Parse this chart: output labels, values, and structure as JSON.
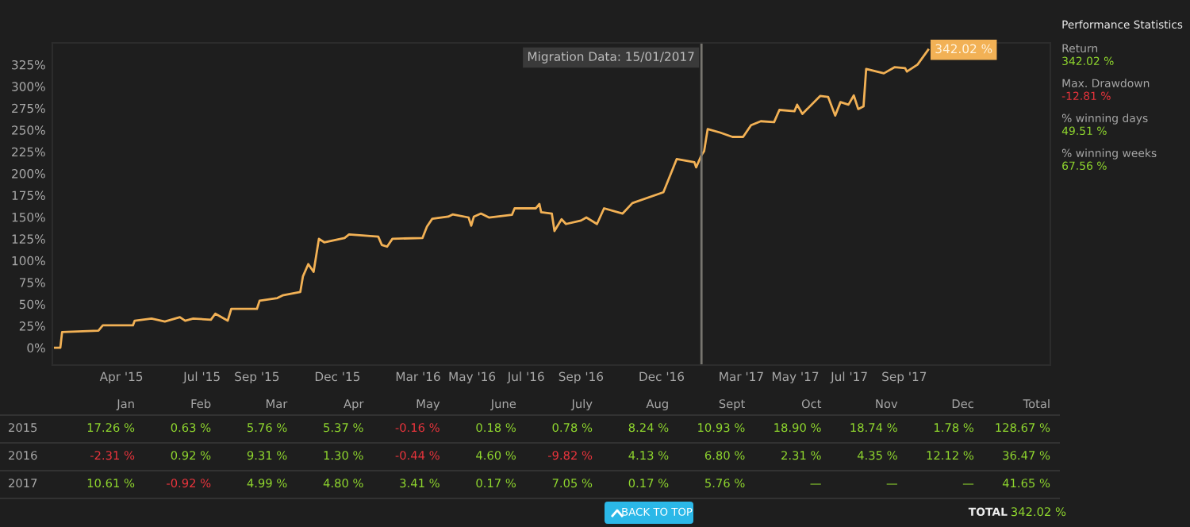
{
  "chart_data": [
    {
      "type": "line",
      "x": [
        "2015-01-16",
        "2015-01-22",
        "2015-01-24",
        "2015-03-06",
        "2015-03-11",
        "2015-04-14",
        "2015-04-16",
        "2015-05-05",
        "2015-05-20",
        "2015-06-06",
        "2015-06-12",
        "2015-06-21",
        "2015-07-11",
        "2015-07-16",
        "2015-07-30",
        "2015-08-03",
        "2015-09-01",
        "2015-09-04",
        "2015-09-24",
        "2015-09-30",
        "2015-10-20",
        "2015-10-23",
        "2015-10-29",
        "2015-11-04",
        "2015-11-10",
        "2015-11-16",
        "2015-12-09",
        "2015-12-14",
        "2016-01-16",
        "2016-01-20",
        "2016-01-26",
        "2016-02-01",
        "2016-03-06",
        "2016-03-11",
        "2016-03-17",
        "2016-04-04",
        "2016-04-09",
        "2016-04-27",
        "2016-04-30",
        "2016-05-03",
        "2016-05-11",
        "2016-05-20",
        "2016-06-15",
        "2016-06-18",
        "2016-07-12",
        "2016-07-16",
        "2016-07-18",
        "2016-07-30",
        "2016-08-02",
        "2016-08-10",
        "2016-08-15",
        "2016-09-01",
        "2016-09-07",
        "2016-09-19",
        "2016-09-27",
        "2016-10-18",
        "2016-10-29",
        "2016-12-03",
        "2016-12-18",
        "2017-01-07",
        "2017-01-09",
        "2017-01-15",
        "2017-01-18",
        "2017-01-22",
        "2017-02-05",
        "2017-02-19",
        "2017-03-03",
        "2017-03-12",
        "2017-03-23",
        "2017-04-07",
        "2017-04-13",
        "2017-04-30",
        "2017-05-03",
        "2017-05-09",
        "2017-05-29",
        "2017-06-07",
        "2017-06-15",
        "2017-06-21",
        "2017-06-30",
        "2017-07-06",
        "2017-07-11",
        "2017-07-17",
        "2017-07-20",
        "2017-08-09",
        "2017-08-21",
        "2017-09-02",
        "2017-09-04",
        "2017-09-16",
        "2017-09-28"
      ],
      "series": [
        {
          "color": "#f2b155",
          "values": [
            0,
            0,
            18,
            19.5,
            25.6,
            25.6,
            31,
            33.5,
            30,
            35,
            31,
            33.5,
            32,
            39,
            31,
            44.5,
            44.5,
            54,
            57,
            60,
            64,
            82,
            96,
            87,
            125,
            121,
            126,
            130,
            127.5,
            118,
            116,
            125,
            126,
            139,
            148,
            150.5,
            153,
            149.5,
            140,
            150.5,
            154,
            149.5,
            152.5,
            160,
            160,
            165,
            155.5,
            154,
            134,
            147.5,
            142,
            146,
            149.5,
            142,
            160,
            154,
            166,
            178.5,
            216.5,
            213,
            207,
            221,
            225.6,
            251,
            247,
            242,
            242,
            255.5,
            260,
            259,
            273,
            271.5,
            279,
            268.5,
            289,
            288,
            266.5,
            282,
            279,
            289.6,
            274,
            277,
            320,
            315,
            322,
            321,
            317,
            325,
            342.02
          ]
        }
      ],
      "xlim": [
        "2015-01-13",
        "2018-02-13"
      ],
      "xticks": [
        {
          "value": "2015-04-01",
          "label": "Apr '15"
        },
        {
          "value": "2015-07-01",
          "label": "Jul '15"
        },
        {
          "value": "2015-09-01",
          "label": "Sep '15"
        },
        {
          "value": "2015-12-01",
          "label": "Dec '15"
        },
        {
          "value": "2016-03-01",
          "label": "Mar '16"
        },
        {
          "value": "2016-05-01",
          "label": "May '16"
        },
        {
          "value": "2016-07-01",
          "label": "Jul '16"
        },
        {
          "value": "2016-09-01",
          "label": "Sep '16"
        },
        {
          "value": "2016-12-01",
          "label": "Dec '16"
        },
        {
          "value": "2017-03-01",
          "label": "Mar '17"
        },
        {
          "value": "2017-05-01",
          "label": "May '17"
        },
        {
          "value": "2017-07-01",
          "label": "Jul '17"
        },
        {
          "value": "2017-09-01",
          "label": "Sep '17"
        }
      ],
      "ylim": [
        -20,
        350
      ],
      "yticks": [
        {
          "value": 0,
          "label": "0%"
        },
        {
          "value": 25,
          "label": "25%"
        },
        {
          "value": 50,
          "label": "50%"
        },
        {
          "value": 75,
          "label": "75%"
        },
        {
          "value": 100,
          "label": "100%"
        },
        {
          "value": 125,
          "label": "125%"
        },
        {
          "value": 150,
          "label": "150%"
        },
        {
          "value": 175,
          "label": "175%"
        },
        {
          "value": 200,
          "label": "200%"
        },
        {
          "value": 225,
          "label": "225%"
        },
        {
          "value": 250,
          "label": "250%"
        },
        {
          "value": 275,
          "label": "275%"
        },
        {
          "value": 300,
          "label": "300%"
        },
        {
          "value": 325,
          "label": "325%"
        }
      ],
      "ref_lines": [
        {
          "axis": "x",
          "value": "2017-01-15",
          "label": "Migration Data: 15/01/2017",
          "color": "#77756f"
        }
      ],
      "annotations": [
        {
          "text": "342.02 %",
          "x": "2017-09-28",
          "y": 342.02
        }
      ],
      "grid": false,
      "legend": false,
      "marker": "none",
      "line_style": "solid"
    },
    {
      "type": "other",
      "title": "Performance Statistics",
      "annotations": [
        "Return",
        "342.02 %",
        "Max. Drawdown",
        "-12.81 %",
        "% winning days",
        "49.51 %",
        "% winning weeks",
        "67.56 %"
      ],
      "colors": [
        "#a8a8a8",
        "#8fd62e",
        "#a8a8a8",
        "#e8343c",
        "#a8a8a8",
        "#8fd62e",
        "#a8a8a8",
        "#8fd62e"
      ]
    },
    {
      "type": "other",
      "categories": [
        "Jan",
        "Feb",
        "Mar",
        "Apr",
        "May",
        "June",
        "July",
        "Aug",
        "Sept",
        "Oct",
        "Nov",
        "Dec",
        "Total"
      ],
      "y_categories": [
        "2015",
        "2016",
        "2017"
      ],
      "cell_labels": [
        [
          "17.26 %",
          "0.63 %",
          "5.76 %",
          "5.37 %",
          "-0.16 %",
          "0.18 %",
          "0.78 %",
          "8.24 %",
          "10.93 %",
          "18.90 %",
          "18.74 %",
          "1.78 %",
          "128.67 %"
        ],
        [
          "-2.31 %",
          "0.92 %",
          "9.31 %",
          "1.30 %",
          "-0.44 %",
          "4.60 %",
          "-9.82 %",
          "4.13 %",
          "6.80 %",
          "2.31 %",
          "4.35 %",
          "12.12 %",
          "36.47 %"
        ],
        [
          "10.61 %",
          "-0.92 %",
          "4.99 %",
          "4.80 %",
          "3.41 %",
          "0.17 %",
          "7.05 %",
          "0.17 %",
          "5.76 %",
          "—",
          "—",
          "—",
          "41.65 %"
        ]
      ],
      "colors": [
        [
          "#8fd62e",
          "#8fd62e",
          "#8fd62e",
          "#8fd62e",
          "#e8343c",
          "#8fd62e",
          "#8fd62e",
          "#8fd62e",
          "#8fd62e",
          "#8fd62e",
          "#8fd62e",
          "#8fd62e",
          "#8fd62e"
        ],
        [
          "#e8343c",
          "#8fd62e",
          "#8fd62e",
          "#8fd62e",
          "#e8343c",
          "#8fd62e",
          "#e8343c",
          "#8fd62e",
          "#8fd62e",
          "#8fd62e",
          "#8fd62e",
          "#8fd62e",
          "#8fd62e"
        ],
        [
          "#8fd62e",
          "#e8343c",
          "#8fd62e",
          "#8fd62e",
          "#8fd62e",
          "#8fd62e",
          "#8fd62e",
          "#8fd62e",
          "#8fd62e",
          "#8fd62e",
          "#8fd62e",
          "#8fd62e",
          "#8fd62e"
        ]
      ],
      "annotations": [
        "TOTAL",
        "342.02 %",
        "BACK TO TOP"
      ]
    }
  ]
}
